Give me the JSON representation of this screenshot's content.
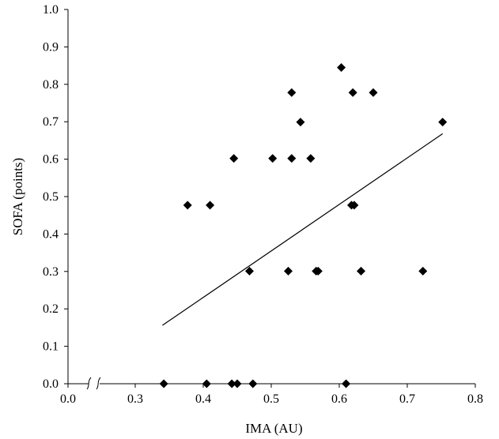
{
  "chart_data": {
    "type": "scatter",
    "xlabel": "IMA (AU)",
    "ylabel": "SOFA (points)",
    "xlim": [
      0.0,
      0.8
    ],
    "ylim": [
      0.0,
      1.0
    ],
    "x_ticks": [
      "0.0",
      "0.3",
      "0.4",
      "0.5",
      "0.6",
      "0.7",
      "0.8"
    ],
    "y_ticks": [
      "0.0",
      "0.1",
      "0.2",
      "0.3",
      "0.4",
      "0.5",
      "0.6",
      "0.7",
      "0.8",
      "0.9",
      "1.0"
    ],
    "axis_break": {
      "axis": "x",
      "between": [
        0.0,
        0.3
      ]
    },
    "grid": false,
    "points": [
      {
        "x": 0.342,
        "y": 0.0
      },
      {
        "x": 0.405,
        "y": 0.0
      },
      {
        "x": 0.442,
        "y": 0.0
      },
      {
        "x": 0.45,
        "y": 0.0
      },
      {
        "x": 0.473,
        "y": 0.0
      },
      {
        "x": 0.61,
        "y": 0.0
      },
      {
        "x": 0.377,
        "y": 0.477
      },
      {
        "x": 0.41,
        "y": 0.477
      },
      {
        "x": 0.445,
        "y": 0.602
      },
      {
        "x": 0.468,
        "y": 0.301
      },
      {
        "x": 0.502,
        "y": 0.602
      },
      {
        "x": 0.525,
        "y": 0.301
      },
      {
        "x": 0.53,
        "y": 0.602
      },
      {
        "x": 0.53,
        "y": 0.778
      },
      {
        "x": 0.543,
        "y": 0.699
      },
      {
        "x": 0.558,
        "y": 0.602
      },
      {
        "x": 0.566,
        "y": 0.301
      },
      {
        "x": 0.569,
        "y": 0.301
      },
      {
        "x": 0.603,
        "y": 0.845
      },
      {
        "x": 0.618,
        "y": 0.477
      },
      {
        "x": 0.622,
        "y": 0.477
      },
      {
        "x": 0.62,
        "y": 0.778
      },
      {
        "x": 0.632,
        "y": 0.301
      },
      {
        "x": 0.65,
        "y": 0.778
      },
      {
        "x": 0.723,
        "y": 0.301
      },
      {
        "x": 0.752,
        "y": 0.699
      }
    ],
    "trendline": {
      "x": [
        0.34,
        0.752
      ],
      "y": [
        0.156,
        0.668
      ]
    },
    "marker": "diamond",
    "color": "#000000"
  }
}
